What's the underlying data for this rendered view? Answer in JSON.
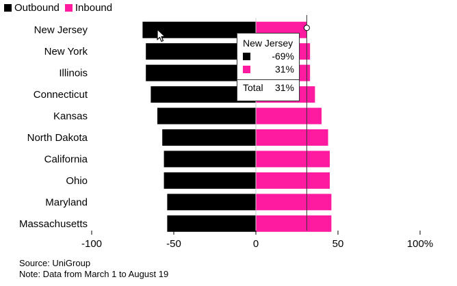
{
  "legend": {
    "outbound_label": "Outbound",
    "inbound_label": "Inbound"
  },
  "colors": {
    "outbound": "#000000",
    "inbound": "#ff1ba0",
    "axis": "#cccccc",
    "hover_line": "#333333"
  },
  "chart_data": {
    "type": "bar",
    "orientation": "horizontal",
    "stacked": "diverging",
    "categories": [
      "New Jersey",
      "New York",
      "Illinois",
      "Connecticut",
      "Kansas",
      "North Dakota",
      "California",
      "Ohio",
      "Maryland",
      "Massachusetts"
    ],
    "series": [
      {
        "name": "Outbound",
        "values": [
          -69,
          -67,
          -67,
          -64,
          -60,
          -57,
          -56,
          -56,
          -54,
          -54
        ]
      },
      {
        "name": "Inbound",
        "values": [
          31,
          33,
          33,
          36,
          40,
          44,
          45,
          45,
          46,
          46
        ]
      }
    ],
    "xlim": [
      -100,
      100
    ],
    "xticks": [
      -100,
      -50,
      0,
      50,
      100
    ],
    "xtick_labels": [
      "-100",
      "-50",
      "0",
      "50",
      "100%"
    ],
    "grid": false,
    "legend_position": "top-left",
    "hover_value": 31
  },
  "tooltip": {
    "title": "New Jersey",
    "outbound_value": "-69%",
    "inbound_value": "31%",
    "total_label": "Total",
    "total_value": "31%"
  },
  "source": "Source: UniGroup",
  "note": "Note: Data from March 1 to August 19"
}
